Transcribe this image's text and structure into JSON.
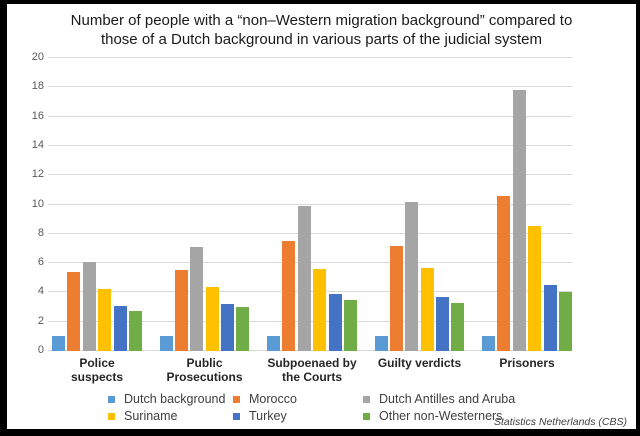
{
  "chart_data": {
    "type": "bar",
    "title": "Number of people with a “non–Western migration background” compared to those of a Dutch background in various parts of the judicial system",
    "title_lines": [
      "Number of people with a “non–Western migration background” compared to",
      "those of a Dutch background in various parts of the judicial system"
    ],
    "categories": [
      "Police suspects",
      "Public Prosecutions",
      "Subpoenaed by the Courts",
      "Guilty verdicts",
      "Prisoners"
    ],
    "categories_wrapped": [
      [
        "Police",
        "suspects"
      ],
      [
        "Public",
        "Prosecutions"
      ],
      [
        "Subpoenaed by",
        "the Courts"
      ],
      [
        "Guilty verdicts"
      ],
      [
        "Prisoners"
      ]
    ],
    "series": [
      {
        "name": "Dutch background",
        "color": "#5B9BD5",
        "values": [
          1.0,
          1.0,
          1.0,
          1.0,
          1.0
        ]
      },
      {
        "name": "Morocco",
        "color": "#ED7D31",
        "values": [
          5.4,
          5.5,
          7.5,
          7.2,
          10.6
        ]
      },
      {
        "name": "Dutch Antilles and Aruba",
        "color": "#A5A5A5",
        "values": [
          6.1,
          7.1,
          9.9,
          10.2,
          17.8
        ]
      },
      {
        "name": "Suriname",
        "color": "#FFC000",
        "values": [
          4.2,
          4.4,
          5.6,
          5.7,
          8.5
        ]
      },
      {
        "name": "Turkey",
        "color": "#4472C4",
        "values": [
          3.1,
          3.2,
          3.9,
          3.7,
          4.5
        ]
      },
      {
        "name": "Other non-Westerners",
        "color": "#70AD47",
        "values": [
          2.7,
          3.0,
          3.5,
          3.3,
          4.0
        ]
      }
    ],
    "ylim": [
      0,
      20
    ],
    "ytick_step": 2,
    "yticks": [
      0,
      2,
      4,
      6,
      8,
      10,
      12,
      14,
      16,
      18,
      20
    ],
    "grid": true,
    "grid_color": "#D9D9D9",
    "legend_position": "bottom",
    "legend_rows": [
      [
        "Dutch background",
        "Morocco",
        "Dutch Antilles and Aruba"
      ],
      [
        "Suriname",
        "Turkey",
        "Other non-Westerners"
      ]
    ],
    "source_note": "Statistics Netherlands (CBS)"
  }
}
